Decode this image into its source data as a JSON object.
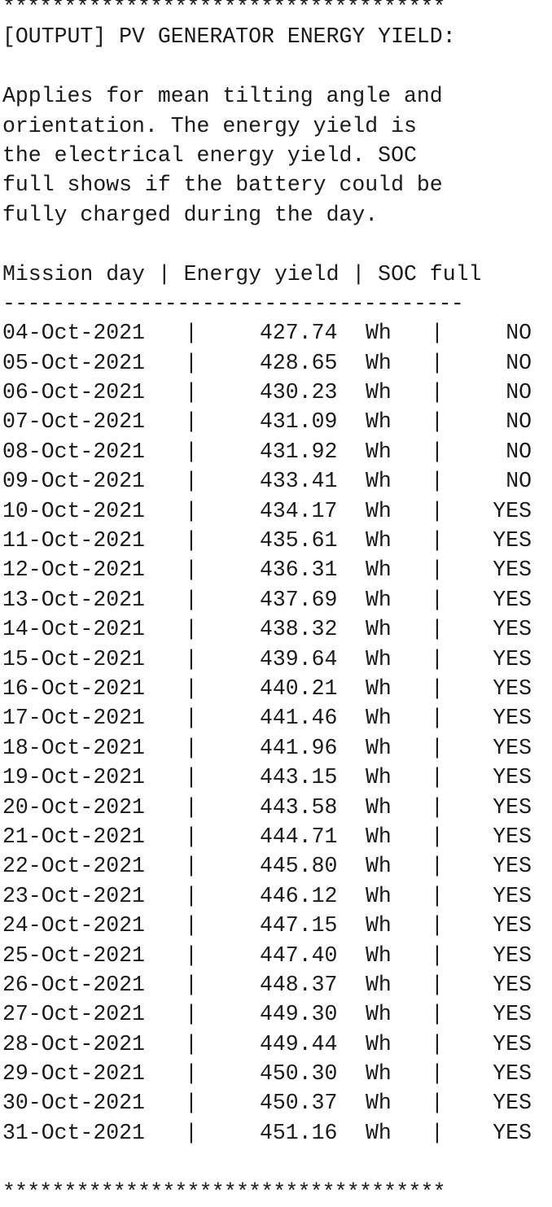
{
  "border_top": "************************************",
  "title": "[OUTPUT] PV GENERATOR ENERGY YIELD:",
  "description_lines": [
    "Applies for mean tilting angle and",
    "orientation. The energy yield is",
    "the electrical energy yield. SOC",
    "full shows if the battery could be",
    "fully charged during the day."
  ],
  "table": {
    "header": "Mission day | Energy yield | SOC full",
    "rule": "-------------------------------------",
    "separator": "|",
    "unit": "Wh",
    "rows": [
      {
        "day": "04-Oct-2021",
        "yield": "427.74",
        "soc": "NO"
      },
      {
        "day": "05-Oct-2021",
        "yield": "428.65",
        "soc": "NO"
      },
      {
        "day": "06-Oct-2021",
        "yield": "430.23",
        "soc": "NO"
      },
      {
        "day": "07-Oct-2021",
        "yield": "431.09",
        "soc": "NO"
      },
      {
        "day": "08-Oct-2021",
        "yield": "431.92",
        "soc": "NO"
      },
      {
        "day": "09-Oct-2021",
        "yield": "433.41",
        "soc": "NO"
      },
      {
        "day": "10-Oct-2021",
        "yield": "434.17",
        "soc": "YES"
      },
      {
        "day": "11-Oct-2021",
        "yield": "435.61",
        "soc": "YES"
      },
      {
        "day": "12-Oct-2021",
        "yield": "436.31",
        "soc": "YES"
      },
      {
        "day": "13-Oct-2021",
        "yield": "437.69",
        "soc": "YES"
      },
      {
        "day": "14-Oct-2021",
        "yield": "438.32",
        "soc": "YES"
      },
      {
        "day": "15-Oct-2021",
        "yield": "439.64",
        "soc": "YES"
      },
      {
        "day": "16-Oct-2021",
        "yield": "440.21",
        "soc": "YES"
      },
      {
        "day": "17-Oct-2021",
        "yield": "441.46",
        "soc": "YES"
      },
      {
        "day": "18-Oct-2021",
        "yield": "441.96",
        "soc": "YES"
      },
      {
        "day": "19-Oct-2021",
        "yield": "443.15",
        "soc": "YES"
      },
      {
        "day": "20-Oct-2021",
        "yield": "443.58",
        "soc": "YES"
      },
      {
        "day": "21-Oct-2021",
        "yield": "444.71",
        "soc": "YES"
      },
      {
        "day": "22-Oct-2021",
        "yield": "445.80",
        "soc": "YES"
      },
      {
        "day": "23-Oct-2021",
        "yield": "446.12",
        "soc": "YES"
      },
      {
        "day": "24-Oct-2021",
        "yield": "447.15",
        "soc": "YES"
      },
      {
        "day": "25-Oct-2021",
        "yield": "447.40",
        "soc": "YES"
      },
      {
        "day": "26-Oct-2021",
        "yield": "448.37",
        "soc": "YES"
      },
      {
        "day": "27-Oct-2021",
        "yield": "449.30",
        "soc": "YES"
      },
      {
        "day": "28-Oct-2021",
        "yield": "449.44",
        "soc": "YES"
      },
      {
        "day": "29-Oct-2021",
        "yield": "450.30",
        "soc": "YES"
      },
      {
        "day": "30-Oct-2021",
        "yield": "450.37",
        "soc": "YES"
      },
      {
        "day": "31-Oct-2021",
        "yield": "451.16",
        "soc": "YES"
      }
    ]
  },
  "border_bottom": "************************************"
}
